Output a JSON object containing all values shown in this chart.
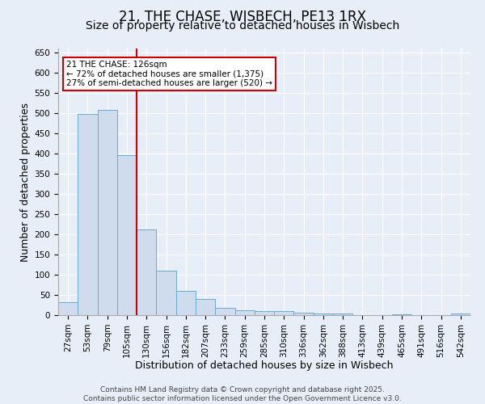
{
  "title1": "21, THE CHASE, WISBECH, PE13 1RX",
  "title2": "Size of property relative to detached houses in Wisbech",
  "xlabel": "Distribution of detached houses by size in Wisbech",
  "ylabel": "Number of detached properties",
  "bar_labels": [
    "27sqm",
    "53sqm",
    "79sqm",
    "105sqm",
    "130sqm",
    "156sqm",
    "182sqm",
    "207sqm",
    "233sqm",
    "259sqm",
    "285sqm",
    "310sqm",
    "336sqm",
    "362sqm",
    "388sqm",
    "413sqm",
    "439sqm",
    "465sqm",
    "491sqm",
    "516sqm",
    "542sqm"
  ],
  "bar_values": [
    32,
    499,
    508,
    397,
    213,
    111,
    60,
    40,
    18,
    13,
    10,
    10,
    7,
    5,
    4,
    0,
    0,
    3,
    0,
    0,
    5
  ],
  "bar_color": "#cfdcee",
  "bar_edge_color": "#6aaad4",
  "vline_color": "#cc0000",
  "annotation_title": "21 THE CHASE: 126sqm",
  "annotation_line1": "← 72% of detached houses are smaller (1,375)",
  "annotation_line2": "27% of semi-detached houses are larger (520) →",
  "annotation_box_color": "#ffffff",
  "annotation_box_edge": "#cc0000",
  "ylim": [
    0,
    660
  ],
  "yticks": [
    0,
    50,
    100,
    150,
    200,
    250,
    300,
    350,
    400,
    450,
    500,
    550,
    600,
    650
  ],
  "background_color": "#e8eef8",
  "plot_bg_color": "#e8eef8",
  "footer1": "Contains HM Land Registry data © Crown copyright and database right 2025.",
  "footer2": "Contains public sector information licensed under the Open Government Licence v3.0.",
  "title1_fontsize": 12,
  "title2_fontsize": 10,
  "xlabel_fontsize": 9,
  "ylabel_fontsize": 9,
  "tick_fontsize": 7.5,
  "footer_fontsize": 6.5,
  "grid_color": "#ffffff",
  "spine_color": "#aaaaaa"
}
